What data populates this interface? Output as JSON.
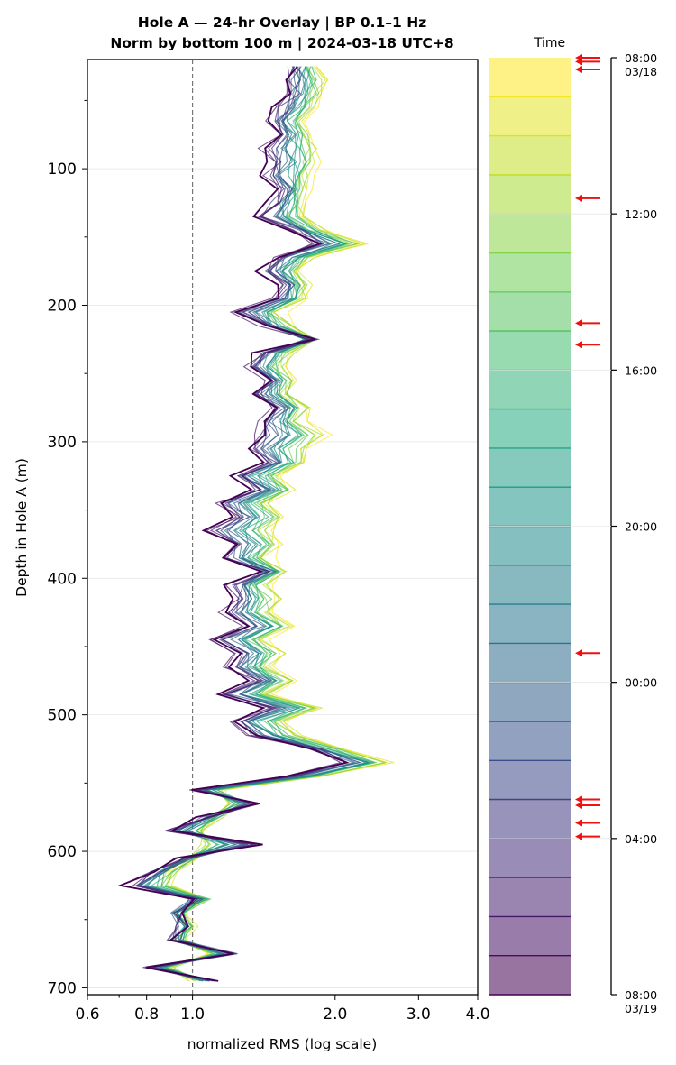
{
  "chart_data": {
    "type": "line",
    "title_line1": "Hole A — 24-hr Overlay  |  BP 0.1–1 Hz",
    "title_line2": "Norm by bottom 100 m  |  2024-03-18 UTC+8",
    "xlabel": "normalized RMS  (log scale)",
    "ylabel": "Depth in Hole A (m)",
    "xscale": "log",
    "xlim": [
      0.6,
      4.0
    ],
    "ylim": [
      705,
      20
    ],
    "y_inverted": true,
    "x_ticks": [
      "0.6",
      "0.8",
      "1.0",
      "2.0",
      "3.0",
      "4.0"
    ],
    "x_tick_values": [
      0.6,
      0.8,
      1.0,
      2.0,
      3.0,
      4.0
    ],
    "y_ticks": [
      "100",
      "200",
      "300",
      "400",
      "500",
      "600",
      "700"
    ],
    "y_tick_values": [
      100,
      200,
      300,
      400,
      500,
      600,
      700
    ],
    "reference_line_x": 1.0,
    "grid": "horizontal, light",
    "colormap": "viridis (yellow = earliest, dark purple = latest)",
    "n_curves": 24,
    "depth_profile": {
      "depths": [
        25,
        35,
        45,
        55,
        65,
        75,
        85,
        95,
        105,
        115,
        125,
        135,
        145,
        155,
        165,
        175,
        185,
        195,
        205,
        215,
        225,
        235,
        245,
        255,
        265,
        275,
        285,
        295,
        305,
        315,
        325,
        335,
        345,
        355,
        365,
        375,
        385,
        395,
        405,
        415,
        425,
        435,
        445,
        455,
        465,
        475,
        485,
        495,
        505,
        515,
        525,
        535,
        545,
        555,
        565,
        575,
        585,
        595,
        605,
        615,
        625,
        635,
        645,
        655,
        665,
        675,
        685,
        695
      ],
      "rms_latest": [
        1.62,
        1.58,
        1.6,
        1.52,
        1.45,
        1.5,
        1.38,
        1.48,
        1.42,
        1.55,
        1.46,
        1.38,
        1.62,
        1.8,
        1.5,
        1.4,
        1.55,
        1.5,
        1.22,
        1.4,
        1.78,
        1.38,
        1.3,
        1.42,
        1.35,
        1.48,
        1.4,
        1.38,
        1.3,
        1.45,
        1.22,
        1.35,
        1.12,
        1.22,
        1.08,
        1.2,
        1.15,
        1.4,
        1.18,
        1.22,
        1.15,
        1.3,
        1.1,
        1.25,
        1.18,
        1.35,
        1.15,
        1.45,
        1.2,
        1.32,
        1.75,
        2.05,
        1.6,
        1.0,
        1.4,
        1.05,
        0.88,
        1.38,
        0.95,
        0.82,
        0.72,
        1.0,
        0.92,
        0.95,
        0.9,
        1.25,
        0.8,
        1.15
      ],
      "rms_earliest": [
        1.8,
        1.95,
        1.85,
        1.78,
        1.7,
        1.75,
        1.85,
        1.82,
        1.78,
        1.75,
        1.7,
        1.72,
        1.88,
        2.3,
        1.8,
        1.68,
        1.75,
        1.72,
        1.55,
        1.6,
        1.78,
        1.62,
        1.55,
        1.65,
        1.6,
        1.75,
        1.7,
        1.92,
        1.75,
        1.72,
        1.5,
        1.62,
        1.45,
        1.55,
        1.48,
        1.52,
        1.45,
        1.55,
        1.45,
        1.52,
        1.48,
        1.6,
        1.42,
        1.55,
        1.48,
        1.62,
        1.45,
        1.88,
        1.55,
        1.68,
        2.05,
        2.6,
        1.85,
        1.15,
        1.2,
        1.15,
        1.05,
        1.05,
        1.02,
        0.92,
        0.9,
        1.08,
        0.95,
        1.0,
        0.95,
        1.1,
        0.9,
        1.0
      ]
    },
    "colorbar": {
      "label": "Time",
      "n_bands": 24,
      "tick_labels": [
        "08:00\n03/18",
        "12:00",
        "16:00",
        "20:00",
        "00:00",
        "04:00",
        "08:00\n03/19"
      ],
      "tick_hours": [
        0,
        4,
        8,
        12,
        16,
        20,
        24
      ],
      "marker_arrows_hours": [
        0.0,
        0.1,
        0.3,
        3.6,
        6.8,
        7.35,
        15.25,
        19.0,
        19.15,
        19.6,
        19.95
      ],
      "arrow_color": "#ee1111"
    }
  }
}
